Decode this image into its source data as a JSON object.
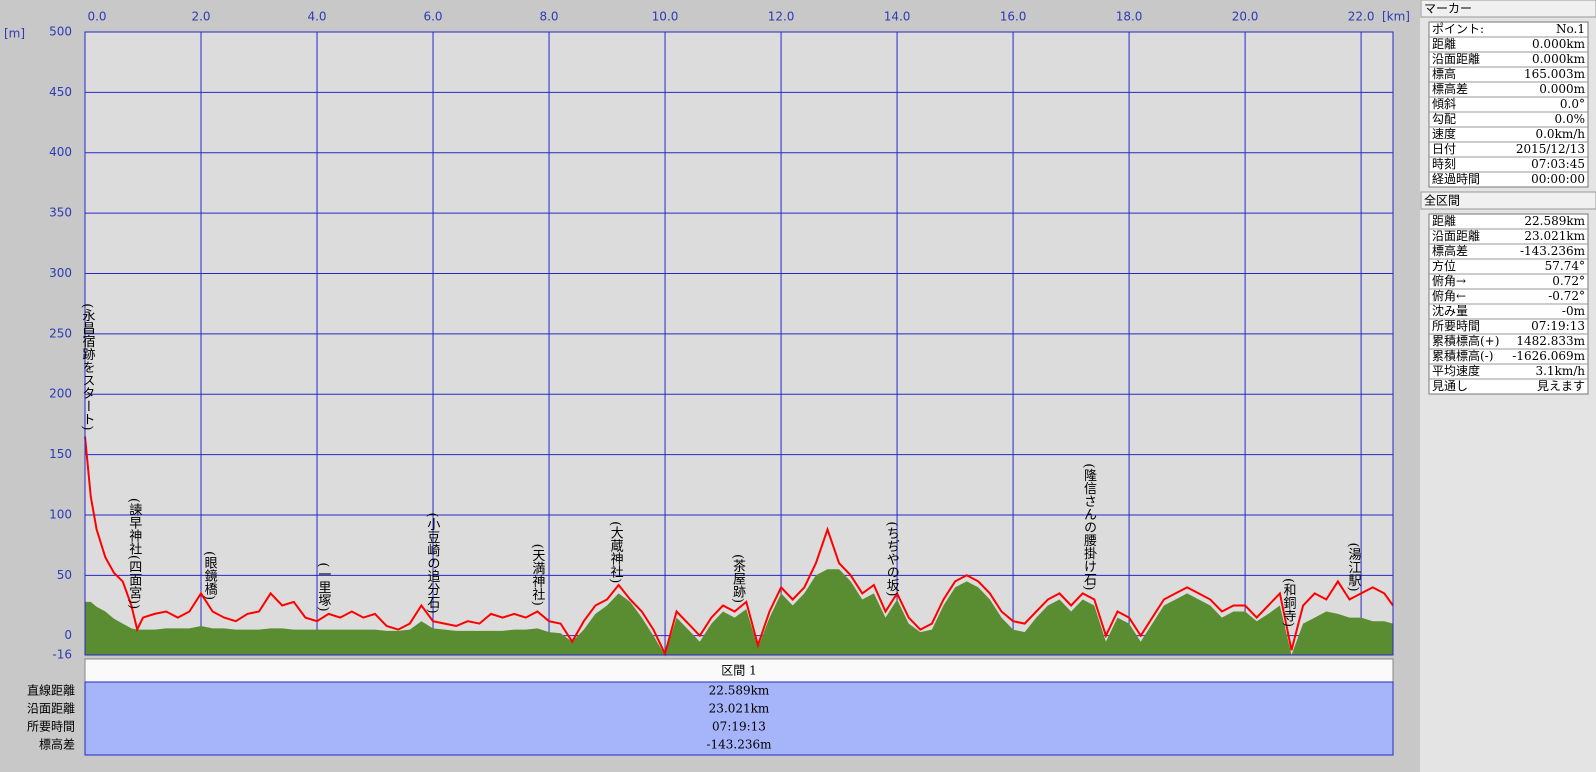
{
  "chart_data": {
    "type": "line",
    "x_unit": "[km]",
    "y_unit": "[m]",
    "xlim": [
      0,
      22.55
    ],
    "ylim": [
      -16,
      500
    ],
    "xticks": [
      {
        "value": 0,
        "label": "0.0"
      },
      {
        "value": 2,
        "label": "2.0"
      },
      {
        "value": 4,
        "label": "4.0"
      },
      {
        "value": 6,
        "label": "6.0"
      },
      {
        "value": 8,
        "label": "8.0"
      },
      {
        "value": 10,
        "label": "10.0"
      },
      {
        "value": 12,
        "label": "12.0"
      },
      {
        "value": 14,
        "label": "14.0"
      },
      {
        "value": 16,
        "label": "16.0"
      },
      {
        "value": 18,
        "label": "18.0"
      },
      {
        "value": 20,
        "label": "20.0"
      },
      {
        "value": 22,
        "label": "22.0"
      }
    ],
    "yticks": [
      -16,
      0,
      50,
      100,
      150,
      200,
      250,
      300,
      350,
      400,
      450,
      500
    ],
    "grid": true,
    "x": [
      0,
      0.1,
      0.2,
      0.35,
      0.5,
      0.65,
      0.8,
      0.9,
      1.0,
      1.2,
      1.4,
      1.6,
      1.8,
      2.0,
      2.2,
      2.4,
      2.6,
      2.8,
      3.0,
      3.2,
      3.4,
      3.6,
      3.8,
      4.0,
      4.2,
      4.4,
      4.6,
      4.8,
      5.0,
      5.2,
      5.4,
      5.6,
      5.8,
      6.0,
      6.2,
      6.4,
      6.6,
      6.8,
      7.0,
      7.2,
      7.4,
      7.6,
      7.8,
      8.0,
      8.2,
      8.4,
      8.6,
      8.8,
      9.0,
      9.2,
      9.4,
      9.6,
      9.8,
      10.0,
      10.2,
      10.4,
      10.6,
      10.8,
      11.0,
      11.2,
      11.4,
      11.6,
      11.8,
      12.0,
      12.2,
      12.4,
      12.6,
      12.8,
      13.0,
      13.2,
      13.4,
      13.6,
      13.8,
      14.0,
      14.2,
      14.4,
      14.6,
      14.8,
      15.0,
      15.2,
      15.4,
      15.6,
      15.8,
      16.0,
      16.2,
      16.4,
      16.6,
      16.8,
      17.0,
      17.2,
      17.4,
      17.6,
      17.8,
      18.0,
      18.2,
      18.4,
      18.6,
      18.8,
      19.0,
      19.2,
      19.4,
      19.6,
      19.8,
      20.0,
      20.2,
      20.4,
      20.6,
      20.8,
      21.0,
      21.2,
      21.4,
      21.6,
      21.8,
      22.0,
      22.2,
      22.4,
      22.55
    ],
    "series": [
      {
        "color": "#5a8c32",
        "fill": true,
        "values": [
          28,
          28,
          24,
          20,
          14,
          10,
          6,
          5,
          5,
          5,
          6,
          6,
          6,
          8,
          6,
          6,
          5,
          5,
          5,
          6,
          6,
          5,
          5,
          5,
          5,
          5,
          5,
          5,
          5,
          4,
          4,
          5,
          12,
          6,
          5,
          4,
          4,
          4,
          4,
          4,
          5,
          5,
          6,
          3,
          2,
          -5,
          5,
          18,
          25,
          35,
          28,
          15,
          0,
          -16,
          15,
          5,
          -5,
          10,
          20,
          15,
          22,
          -10,
          15,
          35,
          25,
          35,
          50,
          55,
          55,
          45,
          30,
          35,
          15,
          30,
          10,
          3,
          5,
          25,
          40,
          45,
          40,
          30,
          15,
          5,
          3,
          15,
          25,
          30,
          20,
          30,
          25,
          -5,
          15,
          10,
          -5,
          10,
          25,
          30,
          35,
          30,
          25,
          15,
          20,
          20,
          12,
          18,
          25,
          -16,
          10,
          15,
          20,
          18,
          15,
          15,
          12,
          12,
          10
        ]
      },
      {
        "color": "#ff0000",
        "values": [
          165,
          115,
          88,
          65,
          52,
          45,
          25,
          5,
          15,
          18,
          20,
          15,
          20,
          35,
          20,
          15,
          12,
          18,
          20,
          35,
          25,
          28,
          15,
          12,
          18,
          15,
          20,
          15,
          18,
          8,
          5,
          10,
          25,
          12,
          10,
          8,
          12,
          10,
          18,
          15,
          18,
          15,
          20,
          12,
          10,
          -5,
          12,
          25,
          30,
          42,
          30,
          20,
          5,
          -15,
          20,
          10,
          0,
          15,
          25,
          20,
          28,
          -8,
          20,
          40,
          30,
          40,
          60,
          88,
          60,
          50,
          35,
          42,
          20,
          35,
          15,
          5,
          10,
          30,
          45,
          50,
          45,
          35,
          20,
          12,
          10,
          20,
          30,
          35,
          25,
          35,
          30,
          0,
          20,
          15,
          0,
          15,
          30,
          35,
          40,
          35,
          30,
          20,
          25,
          25,
          15,
          25,
          35,
          -12,
          25,
          35,
          30,
          45,
          30,
          35,
          40,
          35,
          25
        ]
      }
    ],
    "annotations": [
      {
        "label": "(永昌宿跡をスタート)",
        "x": 0
      },
      {
        "label": "(諫早神社(四面宮))",
        "x": 0.84
      },
      {
        "label": "(眼鏡橋)",
        "x": 2.14
      },
      {
        "label": "(一里塚)",
        "x": 4.1
      },
      {
        "label": "(小豆崎の追分石)",
        "x": 5.98
      },
      {
        "label": "(天満神社)",
        "x": 7.79
      },
      {
        "label": "(大蔵神社)",
        "x": 9.14
      },
      {
        "label": "(茶屋跡)",
        "x": 11.25
      },
      {
        "label": "(ちぢやの坂)",
        "x": 13.9
      },
      {
        "label": "(隆信さんの腰掛け石)",
        "x": 17.3
      },
      {
        "label": "(和銅寺)",
        "x": 20.74
      },
      {
        "label": "(湯江駅)",
        "x": 21.86
      }
    ]
  },
  "section_table": {
    "header": "区間 1",
    "rows": [
      [
        "直線距離",
        "22.589km"
      ],
      [
        "沿面距離",
        "23.021km"
      ],
      [
        "所要時間",
        "07:19:13"
      ],
      [
        "標高差",
        "-143.236m"
      ]
    ]
  },
  "marker_panel": {
    "title": "マーカー",
    "rows": [
      [
        "ポイント:",
        "No.1"
      ],
      [
        "距離",
        "0.000km"
      ],
      [
        "沿面距離",
        "0.000km"
      ],
      [
        "標高",
        "165.003m"
      ],
      [
        "標高差",
        "0.000m"
      ],
      [
        "傾斜",
        "0.0°"
      ],
      [
        "勾配",
        "0.0%"
      ],
      [
        "速度",
        "0.0km/h"
      ],
      [
        "日付",
        "2015/12/13"
      ],
      [
        "時刻",
        "07:03:45"
      ],
      [
        "経過時間",
        "00:00:00"
      ]
    ]
  },
  "total_panel": {
    "title": "全区間",
    "rows": [
      [
        "距離",
        "22.589km"
      ],
      [
        "沿面距離",
        "23.021km"
      ],
      [
        "標高差",
        "-143.236m"
      ],
      [
        "方位",
        "57.74°"
      ],
      [
        "俯角→",
        "0.72°"
      ],
      [
        "俯角←",
        "-0.72°"
      ],
      [
        "沈み量",
        "-0m"
      ],
      [
        "所要時間",
        "07:19:13"
      ],
      [
        "累積標高(+)",
        "1482.833m"
      ],
      [
        "累積標高(-)",
        "-1626.069m"
      ],
      [
        "平均速度",
        "3.1km/h"
      ],
      [
        "見通し",
        "見えます"
      ]
    ]
  }
}
